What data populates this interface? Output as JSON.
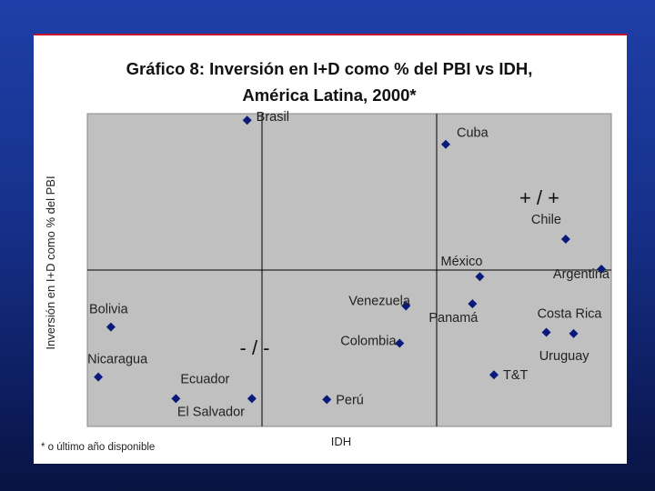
{
  "chart_data": {
    "type": "scatter",
    "title_line1": "Gráfico 8: Inversión en I+D como % del PBI vs IDH,",
    "title_line2": "América Latina, 2000*",
    "xlabel": "IDH",
    "ylabel": "Inversión en I+D como % del PBI",
    "footnote": "* o último año disponible",
    "quadrant_labels": {
      "top_right": "+ / +",
      "bottom_left": "- / -"
    },
    "grid": true,
    "marker_color": "#0a1a7a",
    "plot_background": "#c0c0c0",
    "points": [
      {
        "name": "Brasil",
        "x": 0.305,
        "y": 0.979,
        "label_dx": 10,
        "label_dy": 1,
        "anchor": "start"
      },
      {
        "name": "Cuba",
        "x": 0.684,
        "y": 0.902,
        "label_dx": 12,
        "label_dy": -8,
        "anchor": "start"
      },
      {
        "name": "Chile",
        "x": 0.913,
        "y": 0.599,
        "label_dx": -38,
        "label_dy": -17,
        "anchor": "end"
      },
      {
        "name": "Argentina",
        "x": 0.981,
        "y": 0.503,
        "label_dx": -42,
        "label_dy": 10,
        "anchor": "end"
      },
      {
        "name": "México",
        "x": 0.749,
        "y": 0.479,
        "label_dx": 3,
        "label_dy": -12,
        "anchor": "end"
      },
      {
        "name": "Panamá",
        "x": 0.735,
        "y": 0.392,
        "label_dx": 6,
        "label_dy": 20,
        "anchor": "end"
      },
      {
        "name": "Venezuela",
        "x": 0.608,
        "y": 0.385,
        "label_dx": -63,
        "label_dy": -1,
        "anchor": "end"
      },
      {
        "name": "Costa Rica",
        "x": 0.876,
        "y": 0.301,
        "label_dx": -10,
        "label_dy": -16,
        "anchor": "end"
      },
      {
        "name": "Uruguay",
        "x": 0.928,
        "y": 0.297,
        "label_dx": 17,
        "label_dy": 29,
        "anchor": "end"
      },
      {
        "name": "Colombia",
        "x": 0.596,
        "y": 0.266,
        "label_dx": -65,
        "label_dy": 2,
        "anchor": "end"
      },
      {
        "name": "T&T",
        "x": 0.776,
        "y": 0.165,
        "label_dx": 10,
        "label_dy": 5,
        "anchor": "start"
      },
      {
        "name": "Perú",
        "x": 0.457,
        "y": 0.086,
        "label_dx": 10,
        "label_dy": 5,
        "anchor": "start"
      },
      {
        "name": "Bolivia",
        "x": 0.045,
        "y": 0.318,
        "label_dx": 10,
        "label_dy": -15,
        "anchor": "end"
      },
      {
        "name": "Nicaragua",
        "x": 0.021,
        "y": 0.158,
        "label_dx": -12,
        "label_dy": -15,
        "anchor": "start"
      },
      {
        "name": "Ecuador",
        "x": 0.169,
        "y": 0.089,
        "label_dx": 5,
        "label_dy": -17,
        "anchor": "start"
      },
      {
        "name": "El Salvador",
        "x": 0.314,
        "y": 0.089,
        "label_dx": -82,
        "label_dy": 19,
        "anchor": "end"
      }
    ]
  }
}
